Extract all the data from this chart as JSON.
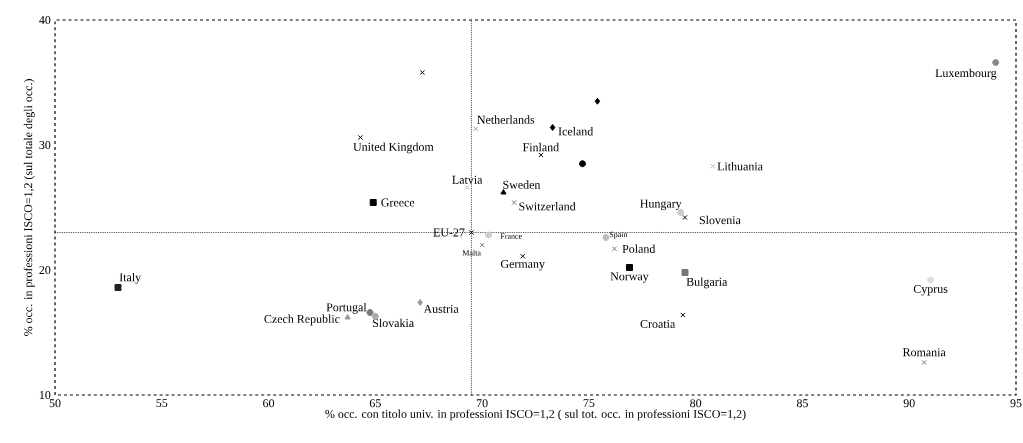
{
  "chart_data": {
    "type": "scatter",
    "xlabel": "% occ. con titolo univ. in professioni ISCO=1,2 ( sul tot. occ. in professioni ISCO=1,2)",
    "ylabel": "% occ. in professioni ISCO=1,2 (sul totale degli occ.)",
    "xlim": [
      50,
      95
    ],
    "ylim": [
      10,
      40
    ],
    "xticks": [
      50,
      55,
      60,
      65,
      70,
      75,
      80,
      85,
      90,
      95
    ],
    "yticks": [
      10,
      20,
      30,
      40
    ],
    "ref_lines": [
      {
        "axis": "x",
        "value": 69.5,
        "line_style": "dotted",
        "color": "#000000"
      },
      {
        "axis": "y",
        "value": 23,
        "line_style": "dotted",
        "color": "#000000"
      }
    ],
    "series": [
      {
        "color": "#000000",
        "marker": "cross",
        "x": [
          67.2
        ],
        "values": [
          35.8
        ]
      },
      {
        "name": "United Kingdom",
        "color": "#000000",
        "marker": "cross",
        "x": [
          64.3
        ],
        "values": [
          30.6
        ]
      },
      {
        "name": "Netherlands",
        "color": "#999999",
        "marker": "cross",
        "x": [
          69.7
        ],
        "values": [
          31.3
        ]
      },
      {
        "name": "Iceland",
        "color": "#000000",
        "marker": "diamond",
        "x": [
          73.3
        ],
        "values": [
          31.4
        ]
      },
      {
        "color": "#000000",
        "marker": "diamond",
        "x": [
          75.4
        ],
        "values": [
          33.5
        ]
      },
      {
        "name": "Finland",
        "color": "#000000",
        "marker": "cross",
        "x": [
          72.75
        ],
        "values": [
          29.2
        ]
      },
      {
        "color": "#000000",
        "marker": "circle",
        "x": [
          74.7
        ],
        "values": [
          28.5
        ]
      },
      {
        "name": "Lithuania",
        "color": "#bbbbbb",
        "marker": "cross",
        "x": [
          80.8
        ],
        "values": [
          28.3
        ]
      },
      {
        "name": "Luxembourg",
        "color": "#888888",
        "marker": "circle",
        "x": [
          94.05
        ],
        "values": [
          36.6
        ]
      },
      {
        "name": "Latvia",
        "color": "#bbbbbb",
        "marker": "cross",
        "x": [
          69.3
        ],
        "values": [
          26.6
        ]
      },
      {
        "name": "Greece",
        "color": "#000000",
        "marker": "square",
        "x": [
          64.9
        ],
        "values": [
          25.4
        ]
      },
      {
        "name": "Sweden",
        "color": "#000000",
        "marker": "triangle",
        "x": [
          71.0
        ],
        "values": [
          26.2
        ]
      },
      {
        "name": "Switzerland",
        "color": "#777777",
        "marker": "cross",
        "x": [
          71.5
        ],
        "values": [
          25.4
        ]
      },
      {
        "name": "Hungary",
        "color": "#cccccc",
        "marker": "circle",
        "x": [
          79.3
        ],
        "values": [
          24.6
        ]
      },
      {
        "name": "Slovenia",
        "color": "#000000",
        "marker": "cross",
        "x": [
          79.5
        ],
        "values": [
          24.2
        ]
      },
      {
        "name": "EU-27",
        "color": "#000000",
        "marker": "cross",
        "x": [
          69.5
        ],
        "values": [
          23.0
        ]
      },
      {
        "name": "France",
        "color": "#cccccc",
        "marker": "circle",
        "x": [
          70.3
        ],
        "values": [
          22.8
        ]
      },
      {
        "name": "Malta",
        "color": "#777777",
        "marker": "cross",
        "x": [
          70.0
        ],
        "values": [
          22.0
        ]
      },
      {
        "name": "Spain",
        "color": "#bbbbbb",
        "marker": "circle",
        "x": [
          75.8
        ],
        "values": [
          22.6
        ]
      },
      {
        "name": "Poland",
        "color": "#777777",
        "marker": "cross",
        "x": [
          76.2
        ],
        "values": [
          21.7
        ]
      },
      {
        "name": "Germany",
        "color": "#000000",
        "marker": "cross",
        "x": [
          71.9
        ],
        "values": [
          21.1
        ]
      },
      {
        "name": "Norway",
        "color": "#000000",
        "marker": "square",
        "x": [
          76.9
        ],
        "values": [
          20.2
        ]
      },
      {
        "name": "Bulgaria",
        "color": "#777777",
        "marker": "square",
        "x": [
          79.5
        ],
        "values": [
          19.8
        ]
      },
      {
        "name": "Croatia",
        "color": "#000000",
        "marker": "cross",
        "x": [
          79.4
        ],
        "values": [
          16.4
        ]
      },
      {
        "name": "Romania",
        "color": "#777777",
        "marker": "cross",
        "x": [
          90.7
        ],
        "values": [
          12.6
        ]
      },
      {
        "name": "Cyprus",
        "color": "#dddddd",
        "marker": "circle",
        "x": [
          91.0
        ],
        "values": [
          19.2
        ]
      },
      {
        "name": "Italy",
        "color": "#222222",
        "marker": "square",
        "x": [
          52.95
        ],
        "values": [
          18.6
        ]
      },
      {
        "name": "Portugal",
        "color": "#777777",
        "marker": "circle",
        "x": [
          64.75
        ],
        "values": [
          16.6
        ]
      },
      {
        "name": "Czech Republic",
        "color": "#999999",
        "marker": "triangle",
        "x": [
          63.7
        ],
        "values": [
          16.2
        ]
      },
      {
        "name": "Slovakia",
        "color": "#aaaaaa",
        "marker": "circle",
        "x": [
          65.0
        ],
        "values": [
          16.3
        ]
      },
      {
        "name": "Austria",
        "color": "#999999",
        "marker": "diamond",
        "x": [
          67.1
        ],
        "values": [
          17.4
        ]
      }
    ]
  }
}
